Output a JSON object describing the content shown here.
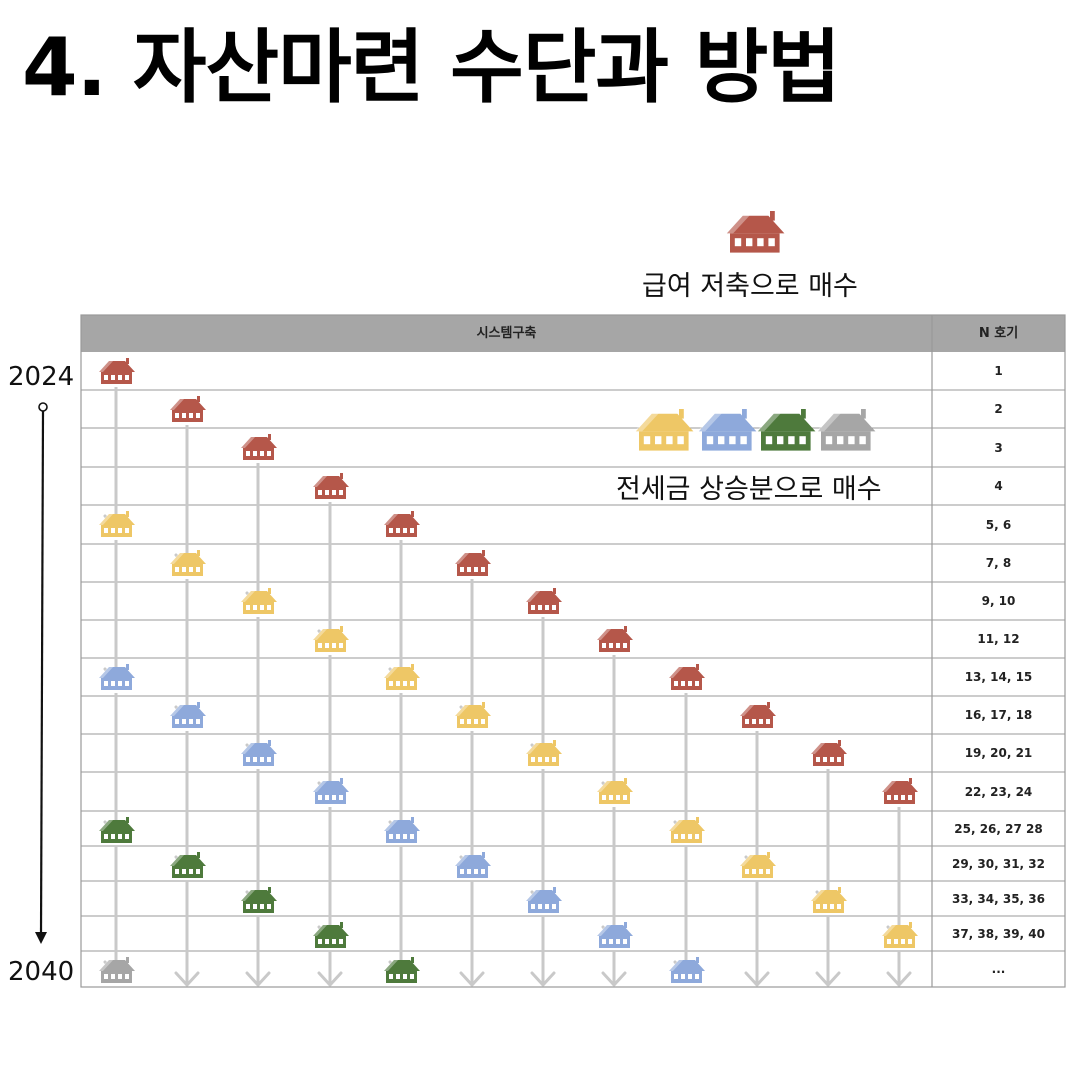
{
  "title": "4. 자산마련 수단과 방법",
  "captions": {
    "salary": "급여 저축으로 매수",
    "jeonse": "전세금 상승분으로 매수"
  },
  "timeline": {
    "start": "2024",
    "end": "2040"
  },
  "table": {
    "header_system": "시스템구축",
    "header_n": "N 호기",
    "rows": [
      "1",
      "2",
      "3",
      "4",
      "5, 6",
      "7, 8",
      "9, 10",
      "11, 12",
      "13, 14, 15",
      "16, 17, 18",
      "19, 20, 21",
      "22, 23, 24",
      "25, 26, 27 28",
      "29, 30, 31, 32",
      "33, 34, 35, 36",
      "37, 38, 39, 40",
      "..."
    ]
  },
  "colors": {
    "red_house": "#b5574a",
    "yellow_house": "#eec766",
    "blue_house": "#8ea9db",
    "green_house": "#4e7a3c",
    "gray_house": "#a6a6a6",
    "arrow": "#c9c9c9",
    "header_bg": "#a6a6a6",
    "grid_line": "#9a9a9a"
  },
  "houses": [
    {
      "col": 0,
      "row": 0,
      "color": "red"
    },
    {
      "col": 1,
      "row": 1,
      "color": "red"
    },
    {
      "col": 2,
      "row": 2,
      "color": "red"
    },
    {
      "col": 3,
      "row": 3,
      "color": "red"
    },
    {
      "col": 0,
      "row": 4,
      "color": "yellow"
    },
    {
      "col": 4,
      "row": 4,
      "color": "red"
    },
    {
      "col": 1,
      "row": 5,
      "color": "yellow"
    },
    {
      "col": 5,
      "row": 5,
      "color": "red"
    },
    {
      "col": 2,
      "row": 6,
      "color": "yellow"
    },
    {
      "col": 6,
      "row": 6,
      "color": "red"
    },
    {
      "col": 3,
      "row": 7,
      "color": "yellow"
    },
    {
      "col": 7,
      "row": 7,
      "color": "red"
    },
    {
      "col": 0,
      "row": 8,
      "color": "blue"
    },
    {
      "col": 4,
      "row": 8,
      "color": "yellow"
    },
    {
      "col": 8,
      "row": 8,
      "color": "red"
    },
    {
      "col": 1,
      "row": 9,
      "color": "blue"
    },
    {
      "col": 5,
      "row": 9,
      "color": "yellow"
    },
    {
      "col": 9,
      "row": 9,
      "color": "red"
    },
    {
      "col": 2,
      "row": 10,
      "color": "blue"
    },
    {
      "col": 6,
      "row": 10,
      "color": "yellow"
    },
    {
      "col": 10,
      "row": 10,
      "color": "red"
    },
    {
      "col": 3,
      "row": 11,
      "color": "blue"
    },
    {
      "col": 7,
      "row": 11,
      "color": "yellow"
    },
    {
      "col": 11,
      "row": 11,
      "color": "red"
    },
    {
      "col": 0,
      "row": 12,
      "color": "green"
    },
    {
      "col": 4,
      "row": 12,
      "color": "blue"
    },
    {
      "col": 8,
      "row": 12,
      "color": "yellow"
    },
    {
      "col": 1,
      "row": 13,
      "color": "green"
    },
    {
      "col": 5,
      "row": 13,
      "color": "blue"
    },
    {
      "col": 9,
      "row": 13,
      "color": "yellow"
    },
    {
      "col": 2,
      "row": 14,
      "color": "green"
    },
    {
      "col": 6,
      "row": 14,
      "color": "blue"
    },
    {
      "col": 10,
      "row": 14,
      "color": "yellow"
    },
    {
      "col": 3,
      "row": 15,
      "color": "green"
    },
    {
      "col": 7,
      "row": 15,
      "color": "blue"
    },
    {
      "col": 11,
      "row": 15,
      "color": "yellow"
    },
    {
      "col": 0,
      "row": 16,
      "color": "gray"
    },
    {
      "col": 4,
      "row": 16,
      "color": "green"
    },
    {
      "col": 8,
      "row": 16,
      "color": "blue"
    }
  ],
  "legend_salary": [
    "red"
  ],
  "legend_jeonse": [
    "yellow",
    "blue",
    "green",
    "gray"
  ]
}
